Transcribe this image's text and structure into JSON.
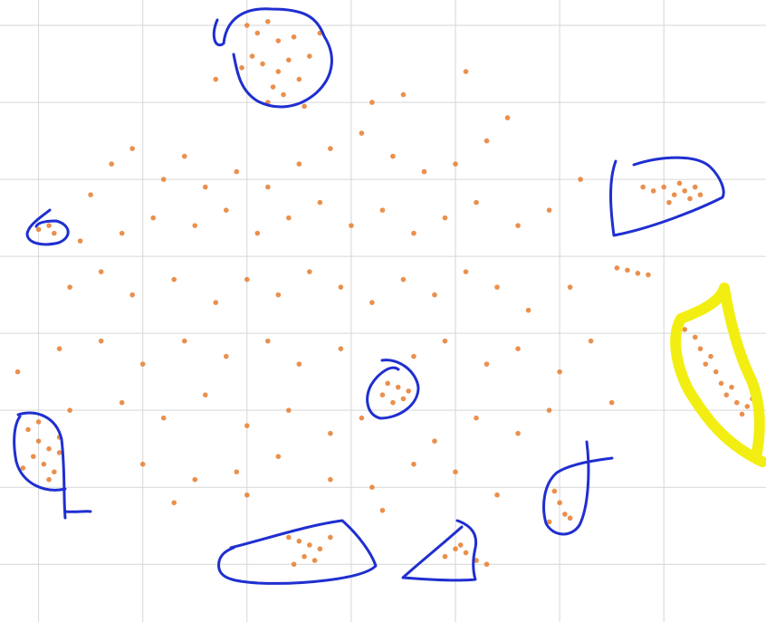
{
  "chart_data": {
    "type": "scatter",
    "color": "#e8843a",
    "grid": true,
    "xlim": [
      -0.37,
      6.98
    ],
    "ylim": [
      -0.75,
      7.33
    ],
    "xticks": [
      0,
      1,
      2,
      3,
      4,
      5,
      6
    ],
    "yticks": [
      0,
      1,
      2,
      3,
      4,
      5,
      6,
      7
    ],
    "x": [
      2.0,
      2.1,
      2.2,
      2.3,
      2.05,
      2.15,
      2.3,
      2.4,
      2.5,
      2.25,
      2.35,
      2.6,
      1.95,
      2.45,
      2.7,
      2.2,
      2.55,
      1.7,
      5.8,
      5.9,
      6.0,
      6.1,
      6.2,
      6.25,
      6.3,
      6.15,
      6.35,
      6.05,
      5.55,
      5.65,
      5.75,
      5.85,
      6.2,
      6.3,
      6.35,
      6.4,
      6.5,
      6.55,
      6.6,
      6.7,
      6.8,
      6.65,
      6.45,
      6.75,
      6.85,
      -0.1,
      0.0,
      0.1,
      -0.05,
      0.05,
      0.15,
      0.2,
      -0.15,
      0.1,
      0.0,
      0.2,
      3.3,
      3.4,
      3.45,
      3.5,
      3.35,
      3.55,
      2.4,
      2.5,
      2.6,
      2.7,
      2.65,
      2.55,
      2.8,
      2.45,
      3.9,
      4.0,
      4.1,
      4.2,
      4.3,
      4.05,
      4.95,
      5.0,
      5.05,
      5.1,
      4.9,
      0.0,
      0.1,
      0.15,
      0.5,
      0.7,
      0.9,
      1.2,
      1.4,
      1.6,
      1.9,
      2.2,
      2.5,
      2.8,
      3.1,
      3.4,
      3.7,
      4.0,
      4.3,
      3.5,
      3.2,
      4.1,
      4.5,
      0.4,
      0.8,
      1.1,
      1.5,
      1.8,
      2.1,
      2.4,
      2.7,
      3.0,
      3.3,
      3.6,
      3.9,
      4.2,
      4.6,
      4.9,
      5.2,
      0.3,
      0.6,
      0.9,
      1.3,
      1.7,
      2.0,
      2.3,
      2.6,
      2.9,
      3.2,
      3.5,
      3.8,
      4.1,
      4.4,
      4.7,
      5.1,
      0.2,
      0.6,
      1.0,
      1.4,
      1.8,
      2.2,
      2.5,
      2.9,
      3.6,
      3.9,
      4.3,
      4.6,
      5.0,
      5.3,
      -0.2,
      0.3,
      0.8,
      1.2,
      1.6,
      2.0,
      2.4,
      2.8,
      3.1,
      3.8,
      4.2,
      4.6,
      4.9,
      5.5,
      1.0,
      1.5,
      1.9,
      2.3,
      2.8,
      3.2,
      3.6,
      4.0,
      4.4,
      1.3,
      2.0,
      3.3
    ],
    "y": [
      7.0,
      6.9,
      7.05,
      6.8,
      6.6,
      6.5,
      6.4,
      6.55,
      6.3,
      6.2,
      6.1,
      6.6,
      6.45,
      6.85,
      6.9,
      6.0,
      5.95,
      6.3,
      4.9,
      4.85,
      4.9,
      4.8,
      4.85,
      4.75,
      4.9,
      4.95,
      4.8,
      4.7,
      3.85,
      3.82,
      3.78,
      3.76,
      3.05,
      2.95,
      2.8,
      2.6,
      2.5,
      2.35,
      2.2,
      2.1,
      2.05,
      2.3,
      2.7,
      1.95,
      2.15,
      1.75,
      1.6,
      1.5,
      1.4,
      1.3,
      1.2,
      1.45,
      1.25,
      1.1,
      1.85,
      1.65,
      2.2,
      2.1,
      2.3,
      2.15,
      2.35,
      2.25,
      0.35,
      0.3,
      0.25,
      0.2,
      0.05,
      0.1,
      0.35,
      0.0,
      0.1,
      0.2,
      0.15,
      0.05,
      0.0,
      0.25,
      0.95,
      0.8,
      0.65,
      0.6,
      0.55,
      4.35,
      4.4,
      4.3,
      4.8,
      5.2,
      5.4,
      5.0,
      5.3,
      4.9,
      5.1,
      4.9,
      5.2,
      5.4,
      5.6,
      5.3,
      5.1,
      5.2,
      5.5,
      6.1,
      6.0,
      6.4,
      5.8,
      4.2,
      4.3,
      4.5,
      4.4,
      4.6,
      4.3,
      4.5,
      4.7,
      4.4,
      4.6,
      4.3,
      4.5,
      4.7,
      4.4,
      4.6,
      5.0,
      3.6,
      3.8,
      3.5,
      3.7,
      3.4,
      3.7,
      3.5,
      3.8,
      3.6,
      3.4,
      3.7,
      3.5,
      3.8,
      3.6,
      3.3,
      3.6,
      2.8,
      2.9,
      2.6,
      2.9,
      2.7,
      2.9,
      2.6,
      2.8,
      2.7,
      2.9,
      2.6,
      2.8,
      2.5,
      2.9,
      2.5,
      2.0,
      2.1,
      1.9,
      2.2,
      1.8,
      2.0,
      1.7,
      1.9,
      1.6,
      1.9,
      1.7,
      2.0,
      2.1,
      1.3,
      1.1,
      1.2,
      1.4,
      1.1,
      1.0,
      1.3,
      1.2,
      0.9,
      0.8,
      0.9,
      0.7
    ]
  }
}
